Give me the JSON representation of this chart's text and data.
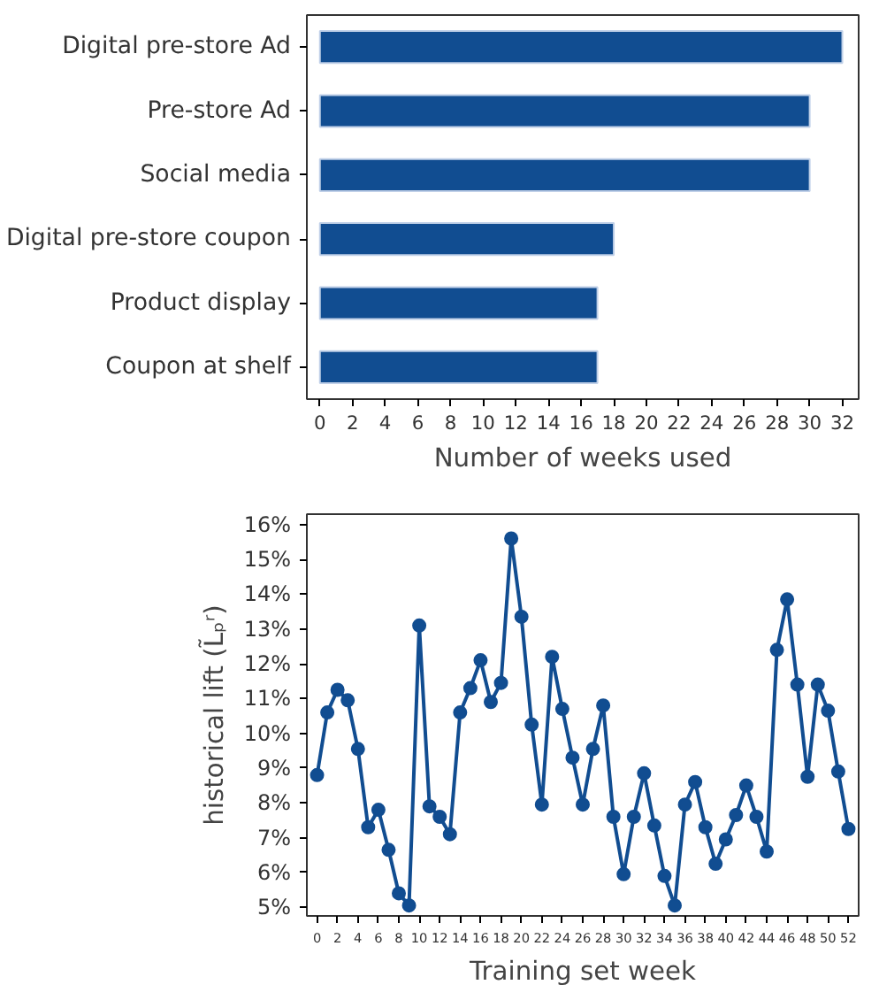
{
  "chart_data": [
    {
      "type": "bar",
      "orientation": "horizontal",
      "xlabel": "Number of weeks used",
      "categories": [
        "Digital pre-store Ad",
        "Pre-store Ad",
        "Social media",
        "Digital pre-store coupon",
        "Product display",
        "Coupon at shelf"
      ],
      "values": [
        32,
        30,
        30,
        18,
        17,
        17
      ],
      "color": "#114d91",
      "xlim": [
        -0.8,
        33
      ],
      "xticks": [
        0,
        2,
        4,
        6,
        8,
        10,
        12,
        14,
        16,
        18,
        20,
        22,
        24,
        26,
        28,
        30,
        32
      ],
      "grid": false
    },
    {
      "type": "line",
      "xlabel": "Training set week",
      "ylabel": "historical lift (L̃ₚʳ)",
      "marker": "circle",
      "line_style": "solid",
      "grid": false,
      "x": [
        0,
        1,
        2,
        3,
        4,
        5,
        6,
        7,
        8,
        9,
        10,
        11,
        12,
        13,
        14,
        15,
        16,
        17,
        18,
        19,
        20,
        21,
        22,
        23,
        24,
        25,
        26,
        27,
        28,
        29,
        30,
        31,
        32,
        33,
        34,
        35,
        36,
        37,
        38,
        39,
        40,
        41,
        42,
        43,
        44,
        45,
        46,
        47,
        48,
        49,
        50,
        51,
        52
      ],
      "series": [
        {
          "color": "#114d91",
          "values": [
            8.8,
            10.6,
            11.25,
            10.95,
            9.55,
            7.3,
            7.8,
            6.65,
            5.4,
            5.05,
            13.1,
            7.9,
            7.6,
            7.1,
            10.6,
            11.3,
            12.1,
            10.9,
            11.45,
            15.6,
            13.35,
            10.25,
            7.95,
            12.2,
            10.7,
            9.3,
            7.95,
            9.55,
            10.8,
            7.6,
            5.95,
            7.6,
            8.85,
            7.35,
            5.9,
            5.05,
            7.95,
            8.6,
            7.3,
            6.25,
            6.95,
            7.65,
            8.5,
            7.6,
            6.6,
            12.4,
            13.85,
            11.4,
            8.75,
            11.4,
            10.65,
            8.9,
            7.25
          ]
        }
      ],
      "xlim": [
        -1,
        53
      ],
      "xticks": [
        0,
        2,
        4,
        6,
        8,
        10,
        12,
        14,
        16,
        18,
        20,
        22,
        24,
        26,
        28,
        30,
        32,
        34,
        36,
        38,
        40,
        42,
        44,
        46,
        48,
        50,
        52
      ],
      "ylim": [
        4.75,
        16.3
      ],
      "yticks": [
        {
          "value": 5,
          "label": "5%"
        },
        {
          "value": 6,
          "label": "6%"
        },
        {
          "value": 7,
          "label": "7%"
        },
        {
          "value": 8,
          "label": "8%"
        },
        {
          "value": 9,
          "label": "9%"
        },
        {
          "value": 10,
          "label": "10%"
        },
        {
          "value": 11,
          "label": "11%"
        },
        {
          "value": 12,
          "label": "12%"
        },
        {
          "value": 13,
          "label": "13%"
        },
        {
          "value": 14,
          "label": "14%"
        },
        {
          "value": 15,
          "label": "15%"
        },
        {
          "value": 16,
          "label": "16%"
        }
      ]
    }
  ]
}
